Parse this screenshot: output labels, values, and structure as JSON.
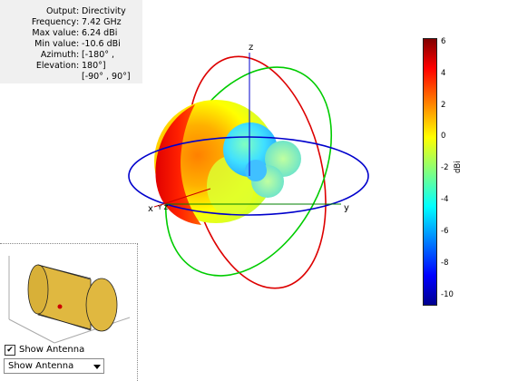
{
  "info_panel": {
    "rows": [
      {
        "key": "Output",
        "value": "Directivity"
      },
      {
        "key": "Frequency",
        "value": "7.42 GHz"
      },
      {
        "key": "Max value",
        "value": "6.24 dBi"
      },
      {
        "key": "Min value",
        "value": "-10.6 dBi"
      },
      {
        "key": "Azimuth",
        "value": "[-180° ,"
      },
      {
        "key": "Elevation",
        "value": "180°]"
      }
    ],
    "continuation": "[-90° , 90°]"
  },
  "axes": {
    "x": "x",
    "y": "y",
    "z": "z"
  },
  "colorbar": {
    "unit": "dBi",
    "ticks": [
      "6",
      "4",
      "2",
      "0",
      "-2",
      "-4",
      "-6",
      "-8",
      "-10"
    ],
    "colors": [
      "#7f0000",
      "#ff0000",
      "#ff8000",
      "#ffff00",
      "#80ff80",
      "#00ffff",
      "#0080ff",
      "#0000ff",
      "#00008f"
    ]
  },
  "controls": {
    "show_antenna_checked": true,
    "show_antenna_label": "Show Antenna",
    "dropdown_value": "Show Antenna",
    "checkmark": "✔"
  },
  "colors": {
    "azimuth_circle": "#0000cc",
    "elevation_red": "#dd0000",
    "elevation_green": "#00cc00",
    "antenna": "#e0b840"
  }
}
